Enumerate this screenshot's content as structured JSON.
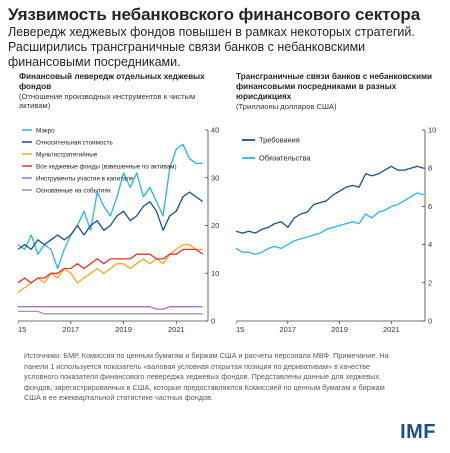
{
  "title": "Уязвимость небанковского финансового сектора",
  "subtitle": "Левередж хеджевых фондов повышен в рамках некоторых стратегий. Расширились трансграничные связи банков с небанковскими финансовыми посредниками.",
  "notes": "Источники: БМР, Комиссия по ценным бумагам и биржам США и расчеты персонала МВФ. Примечание. На панели 1 используется показатель «валовая условная открытая позиция по деривативам» в качестве условного показателя финансового левереджа хеджевых фондов. Представлены данные для хеджевых фондов, зарегистрированных в США, которые предоставляются Комиссией по ценным бумагам и биржам США в ее ежеквартальной статистике частных фондов.",
  "logo": "IMF",
  "chart_data": [
    {
      "type": "line",
      "title": "Финансовый левередж отдельных хеджевых фондов",
      "subtitle": "(Отношение производных инструментов к чистым активам)",
      "xlim": [
        2015,
        2022.2
      ],
      "ylim": [
        0,
        40
      ],
      "x_ticks": [
        "2015",
        "2017",
        "2019",
        "2021"
      ],
      "y_ticks": [
        "0",
        "10",
        "20",
        "30",
        "40"
      ],
      "y_axis_side": "right",
      "legend_position": "top-left",
      "x": [
        2015.0,
        2015.25,
        2015.5,
        2015.75,
        2016.0,
        2016.25,
        2016.5,
        2016.75,
        2017.0,
        2017.25,
        2017.5,
        2017.75,
        2018.0,
        2018.25,
        2018.5,
        2018.75,
        2019.0,
        2019.25,
        2019.5,
        2019.75,
        2020.0,
        2020.25,
        2020.5,
        2020.75,
        2021.0,
        2021.25,
        2021.5,
        2021.75,
        2022.0
      ],
      "series": [
        {
          "name": "Макро",
          "color": "#2ab3e6",
          "values": [
            16,
            15,
            18,
            14,
            16,
            15,
            11,
            15,
            18,
            20,
            23,
            19,
            27,
            24,
            22,
            26,
            31,
            28,
            31,
            26,
            28,
            25,
            22,
            32,
            36,
            37,
            34,
            33,
            33
          ]
        },
        {
          "name": "Относительная стоимость",
          "color": "#1b4f8a",
          "values": [
            15,
            16,
            15,
            17,
            16,
            17,
            18,
            17,
            18,
            20,
            18,
            20,
            21,
            19,
            20,
            22,
            23,
            21,
            22,
            24,
            25,
            23,
            19,
            22,
            23,
            26,
            27,
            26,
            25
          ]
        },
        {
          "name": "Мультистратегийные",
          "color": "#f5a623",
          "values": [
            6,
            7,
            8,
            9,
            8,
            10,
            9,
            11,
            10,
            8,
            9,
            10,
            11,
            10,
            11,
            12,
            12,
            11,
            12,
            13,
            12,
            13,
            12,
            14,
            15,
            16,
            16,
            15,
            15
          ]
        },
        {
          "name": "Все хеджевые фонды (взвешенные по активам)",
          "color": "#e3322b",
          "values": [
            8,
            9,
            8,
            9,
            9,
            10,
            10,
            11,
            11,
            12,
            11,
            12,
            13,
            12,
            13,
            13,
            13,
            13,
            14,
            14,
            14,
            13,
            13,
            14,
            14,
            15,
            15,
            15,
            14
          ]
        },
        {
          "name": "Инструменты участия в капитале",
          "color": "#a56fd1",
          "values": [
            3,
            3,
            3,
            3,
            3,
            3,
            3,
            3,
            3,
            3,
            3,
            3,
            3,
            3,
            3,
            3,
            3,
            3,
            3,
            3,
            3,
            2.5,
            2.5,
            3,
            3,
            3,
            3,
            3,
            3
          ]
        },
        {
          "name": "Основанные на событиях",
          "color": "#9a9a9a",
          "values": [
            2,
            2,
            2,
            2,
            1.5,
            1.5,
            1.5,
            1.5,
            1.5,
            1.5,
            1.5,
            1.5,
            1.5,
            1.5,
            1.5,
            1.5,
            1.5,
            1.5,
            1.5,
            1.5,
            1.5,
            1.5,
            1.5,
            1.5,
            1.5,
            1.5,
            1.5,
            1.5,
            1.5
          ]
        }
      ]
    },
    {
      "type": "line",
      "title": "Трансграничные связи банков с небанковскими финансовыми посредниками в разных юрисдикциях",
      "subtitle": "(Триллионы долларов США)",
      "xlim": [
        2015,
        2022.3
      ],
      "ylim": [
        0,
        10
      ],
      "x_ticks": [
        "2015",
        "2017",
        "2019",
        "2021"
      ],
      "y_ticks": [
        "0",
        "2",
        "4",
        "6",
        "8",
        "10"
      ],
      "y_axis_side": "right",
      "legend_position": "top-left",
      "x": [
        2015.0,
        2015.25,
        2015.5,
        2015.75,
        2016.0,
        2016.25,
        2016.5,
        2016.75,
        2017.0,
        2017.25,
        2017.5,
        2017.75,
        2018.0,
        2018.25,
        2018.5,
        2018.75,
        2019.0,
        2019.25,
        2019.5,
        2019.75,
        2020.0,
        2020.25,
        2020.5,
        2020.75,
        2021.0,
        2021.25,
        2021.5,
        2021.75,
        2022.0,
        2022.25
      ],
      "series": [
        {
          "name": "Требования",
          "color": "#1b4f8a",
          "values": [
            4.7,
            4.6,
            4.7,
            4.6,
            4.8,
            4.9,
            5.1,
            5.2,
            4.9,
            5.4,
            5.6,
            5.7,
            6.1,
            6.2,
            6.3,
            6.6,
            6.8,
            7.0,
            7.1,
            7.0,
            7.7,
            7.6,
            7.7,
            7.9,
            8.1,
            7.9,
            7.9,
            8.0,
            8.1,
            8.0
          ]
        },
        {
          "name": "Обязательства",
          "color": "#2ab3e6",
          "values": [
            3.8,
            3.6,
            3.6,
            3.5,
            3.6,
            3.8,
            3.9,
            3.8,
            4.0,
            4.2,
            4.3,
            4.4,
            4.5,
            4.6,
            4.8,
            4.9,
            5.0,
            5.1,
            5.2,
            5.1,
            5.6,
            5.4,
            5.7,
            5.8,
            6.0,
            6.1,
            6.3,
            6.5,
            6.7,
            6.6
          ]
        }
      ]
    }
  ]
}
